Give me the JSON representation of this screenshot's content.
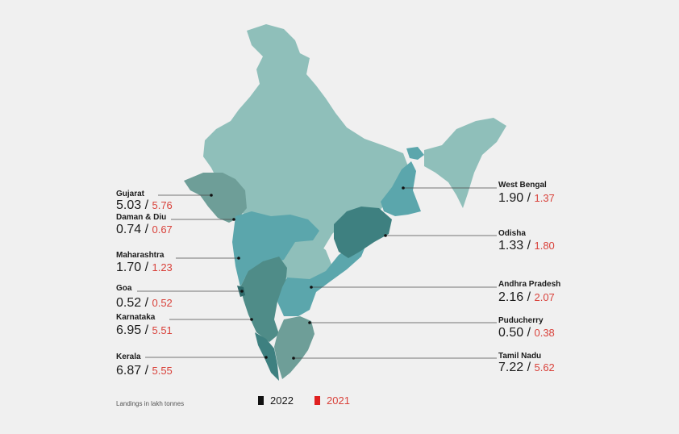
{
  "caption": "Landings in lakh tonnes",
  "legend": [
    {
      "label": "2022",
      "color": "#111111"
    },
    {
      "label": "2021",
      "color": "#e02020"
    }
  ],
  "colors": {
    "base": "#8fbfba",
    "mid": "#5ba6ac",
    "dark": "#3e8080",
    "value_2021": "#d9423b"
  },
  "states": [
    {
      "name": "Gujarat",
      "v2022": "5.03",
      "v2021": "5.76"
    },
    {
      "name": "Daman & Diu",
      "v2022": "0.74",
      "v2021": "0.67"
    },
    {
      "name": "Maharashtra",
      "v2022": "1.70",
      "v2021": "1.23"
    },
    {
      "name": "Goa",
      "v2022": "0.52",
      "v2021": "0.52"
    },
    {
      "name": "Karnataka",
      "v2022": "6.95",
      "v2021": "5.51"
    },
    {
      "name": "Kerala",
      "v2022": "6.87",
      "v2021": "5.55"
    },
    {
      "name": "West Bengal",
      "v2022": "1.90",
      "v2021": "1.37"
    },
    {
      "name": "Odisha",
      "v2022": "1.33",
      "v2021": "1.80"
    },
    {
      "name": "Andhra Pradesh",
      "v2022": "2.16",
      "v2021": "2.07"
    },
    {
      "name": "Puducherry",
      "v2022": "0.50",
      "v2021": "0.38"
    },
    {
      "name": "Tamil Nadu",
      "v2022": "7.22",
      "v2021": "5.62"
    }
  ]
}
